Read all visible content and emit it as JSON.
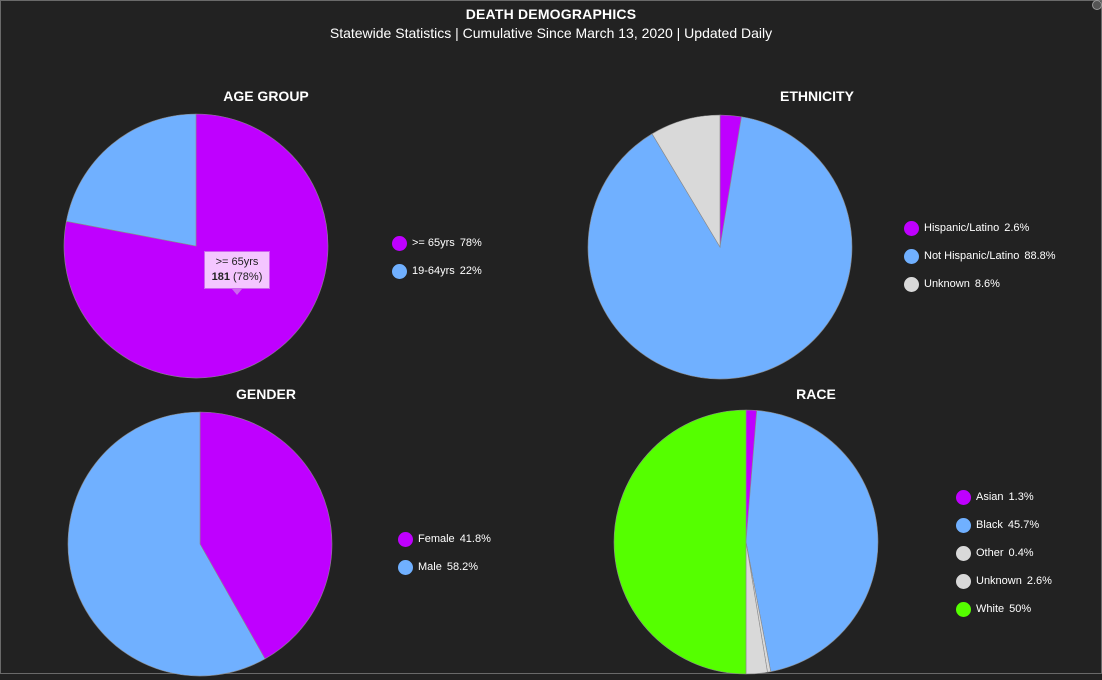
{
  "header": {
    "title": "DEATH DEMOGRAPHICS",
    "subtitle": "Statewide Statistics  |  Cumulative Since March 13, 2020  |  Updated Daily"
  },
  "colors": {
    "background": "#222222",
    "purple": "#bf00ff",
    "blue": "#70b0ff",
    "gray": "#d9d9d9",
    "green": "#55ff00"
  },
  "tooltip": {
    "label": ">= 65yrs",
    "count": "181",
    "percent": "(78%)"
  },
  "chart_data": [
    {
      "type": "pie",
      "title": "AGE GROUP",
      "slices": [
        {
          "label": ">= 65yrs",
          "legend_value": "78%",
          "value": 78,
          "color": "#bf00ff"
        },
        {
          "label": "19-64yrs",
          "legend_value": "22%",
          "value": 22,
          "color": "#70b0ff"
        }
      ]
    },
    {
      "type": "pie",
      "title": "ETHNICITY",
      "slices": [
        {
          "label": "Hispanic/Latino",
          "legend_value": "2.6%",
          "value": 2.6,
          "color": "#bf00ff"
        },
        {
          "label": "Not Hispanic/Latino",
          "legend_value": "88.8%",
          "value": 88.8,
          "color": "#70b0ff"
        },
        {
          "label": "Unknown",
          "legend_value": "8.6%",
          "value": 8.6,
          "color": "#d9d9d9"
        }
      ]
    },
    {
      "type": "pie",
      "title": "GENDER",
      "slices": [
        {
          "label": "Female",
          "legend_value": "41.8%",
          "value": 41.8,
          "color": "#bf00ff"
        },
        {
          "label": "Male",
          "legend_value": "58.2%",
          "value": 58.2,
          "color": "#70b0ff"
        }
      ]
    },
    {
      "type": "pie",
      "title": "RACE",
      "slices": [
        {
          "label": "Asian",
          "legend_value": "1.3%",
          "value": 1.3,
          "color": "#bf00ff"
        },
        {
          "label": "Black",
          "legend_value": "45.7%",
          "value": 45.7,
          "color": "#70b0ff"
        },
        {
          "label": "Other",
          "legend_value": "0.4%",
          "value": 0.4,
          "color": "#d9d9d9"
        },
        {
          "label": "Unknown",
          "legend_value": "2.6%",
          "value": 2.6,
          "color": "#d9d9d9"
        },
        {
          "label": "White",
          "legend_value": "50%",
          "value": 50,
          "color": "#55ff00"
        }
      ]
    }
  ]
}
